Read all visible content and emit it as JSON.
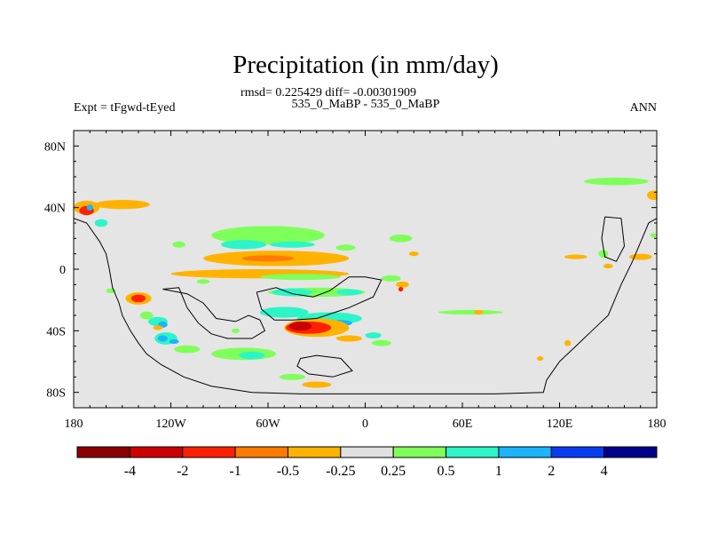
{
  "chart_data": {
    "type": "heatmap",
    "title": "Precipitation (in mm/day)",
    "stats_line": "rmsd= 0.225429 diff= -0.00301909",
    "case_line": "535_0_MaBP - 535_0_MaBP",
    "left_label": "Expt = tFgwd-tEyed",
    "right_label": "ANN",
    "xlim": [
      -180,
      180
    ],
    "ylim": [
      -90,
      90
    ],
    "x_ticks": [
      {
        "value": -180,
        "label": "180"
      },
      {
        "value": -120,
        "label": "120W"
      },
      {
        "value": -60,
        "label": "60W"
      },
      {
        "value": 0,
        "label": "0"
      },
      {
        "value": 60,
        "label": "60E"
      },
      {
        "value": 120,
        "label": "120E"
      },
      {
        "value": 180,
        "label": "180"
      }
    ],
    "y_ticks": [
      {
        "value": 80,
        "label": "80N"
      },
      {
        "value": 40,
        "label": "40N"
      },
      {
        "value": 0,
        "label": "0"
      },
      {
        "value": -40,
        "label": "40S"
      },
      {
        "value": -80,
        "label": "80S"
      }
    ],
    "colorbar": {
      "colors": [
        "#8b0000",
        "#cc0000",
        "#ff2000",
        "#ff7a00",
        "#ffb300",
        "#e0e0e0",
        "#7fff5a",
        "#2cf5c8",
        "#1ab4ff",
        "#0a3cf0",
        "#00008b"
      ],
      "labels": [
        "-4",
        "-2",
        "-1",
        "-0.5",
        "-0.25",
        "0.25",
        "0.5",
        "1",
        "2",
        "4"
      ]
    },
    "background_color": "#e5e5e5",
    "coastline": [
      [
        [
          -180,
          33
        ],
        [
          -172,
          30
        ],
        [
          -168,
          24
        ],
        [
          -164,
          18
        ],
        [
          -160,
          10
        ],
        [
          -158,
          0
        ],
        [
          -156,
          -12
        ],
        [
          -152,
          -22
        ],
        [
          -150,
          -30
        ],
        [
          -145,
          -40
        ],
        [
          -140,
          -48
        ],
        [
          -135,
          -55
        ],
        [
          -126,
          -62
        ],
        [
          -112,
          -70
        ],
        [
          -95,
          -76
        ],
        [
          -70,
          -80
        ],
        [
          -40,
          -81
        ],
        [
          0,
          -81
        ],
        [
          40,
          -81
        ],
        [
          80,
          -81
        ],
        [
          110,
          -80
        ],
        [
          112,
          -72
        ],
        [
          120,
          -60
        ],
        [
          130,
          -50
        ],
        [
          140,
          -40
        ],
        [
          150,
          -30
        ],
        [
          158,
          -10
        ],
        [
          165,
          5
        ],
        [
          175,
          30
        ],
        [
          180,
          33
        ]
      ],
      [
        [
          -125,
          -13
        ],
        [
          -115,
          -12
        ],
        [
          -110,
          -25
        ],
        [
          -103,
          -35
        ],
        [
          -95,
          -42
        ],
        [
          -85,
          -45
        ],
        [
          -70,
          -45
        ],
        [
          -62,
          -40
        ],
        [
          -65,
          -33
        ],
        [
          -72,
          -30
        ],
        [
          -80,
          -34
        ],
        [
          -92,
          -32
        ],
        [
          -100,
          -22
        ],
        [
          -110,
          -16
        ],
        [
          -125,
          -13
        ]
      ],
      [
        [
          -67,
          -15
        ],
        [
          -55,
          -12
        ],
        [
          -45,
          -16
        ],
        [
          -32,
          -18
        ],
        [
          -22,
          -14
        ],
        [
          -10,
          -5
        ],
        [
          0,
          -5
        ],
        [
          10,
          -7
        ],
        [
          5,
          -18
        ],
        [
          -10,
          -25
        ],
        [
          -30,
          -32
        ],
        [
          -45,
          -33
        ],
        [
          -56,
          -33
        ],
        [
          -64,
          -26
        ],
        [
          -67,
          -15
        ]
      ],
      [
        [
          -40,
          -58
        ],
        [
          -30,
          -56
        ],
        [
          -15,
          -58
        ],
        [
          -8,
          -66
        ],
        [
          -20,
          -70
        ],
        [
          -35,
          -68
        ],
        [
          -42,
          -63
        ],
        [
          -40,
          -58
        ]
      ],
      [
        [
          148,
          34
        ],
        [
          158,
          33
        ],
        [
          160,
          15
        ],
        [
          155,
          5
        ],
        [
          148,
          8
        ],
        [
          146,
          20
        ],
        [
          148,
          34
        ]
      ]
    ],
    "anomalies": [
      {
        "lon": -172,
        "lat": 40,
        "w": 16,
        "h": 9,
        "value": -0.35
      },
      {
        "lon": -172,
        "lat": 38,
        "w": 9,
        "h": 6,
        "value": -1.2
      },
      {
        "lon": -170,
        "lat": 40,
        "w": 4,
        "h": 4,
        "value": 1.5
      },
      {
        "lon": -150,
        "lat": 42,
        "w": 34,
        "h": 6,
        "value": -0.35
      },
      {
        "lon": -163,
        "lat": 30,
        "w": 8,
        "h": 5,
        "value": 0.6
      },
      {
        "lon": -115,
        "lat": 16,
        "w": 8,
        "h": 4,
        "value": 0.35
      },
      {
        "lon": -60,
        "lat": 22,
        "w": 70,
        "h": 12,
        "value": 0.35
      },
      {
        "lon": -75,
        "lat": 16,
        "w": 28,
        "h": 6,
        "value": 0.7
      },
      {
        "lon": -45,
        "lat": 16,
        "w": 28,
        "h": 4,
        "value": 0.7
      },
      {
        "lon": -12,
        "lat": 14,
        "w": 12,
        "h": 4,
        "value": 0.35
      },
      {
        "lon": 22,
        "lat": 20,
        "w": 14,
        "h": 5,
        "value": 0.35
      },
      {
        "lon": -55,
        "lat": 7,
        "w": 90,
        "h": 10,
        "value": -0.35
      },
      {
        "lon": -60,
        "lat": 7,
        "w": 32,
        "h": 4,
        "value": -0.7
      },
      {
        "lon": -65,
        "lat": -3,
        "w": 110,
        "h": 6,
        "value": -0.35
      },
      {
        "lon": -40,
        "lat": -5,
        "w": 50,
        "h": 4,
        "value": 0.35
      },
      {
        "lon": 16,
        "lat": -6,
        "w": 12,
        "h": 4,
        "value": 0.35
      },
      {
        "lon": -30,
        "lat": -15,
        "w": 60,
        "h": 6,
        "value": 0.35
      },
      {
        "lon": -45,
        "lat": -15,
        "w": 25,
        "h": 5,
        "value": 0.7
      },
      {
        "lon": -10,
        "lat": -15,
        "w": 16,
        "h": 4,
        "value": 0.7
      },
      {
        "lon": -50,
        "lat": -28,
        "w": 30,
        "h": 7,
        "value": 0.6
      },
      {
        "lon": -22,
        "lat": -32,
        "w": 40,
        "h": 8,
        "value": 0.7
      },
      {
        "lon": -15,
        "lat": -35,
        "w": 14,
        "h": 4,
        "value": 1.5
      },
      {
        "lon": -30,
        "lat": -38,
        "w": 40,
        "h": 12,
        "value": -0.35
      },
      {
        "lon": -35,
        "lat": -38,
        "w": 28,
        "h": 8,
        "value": -1.5
      },
      {
        "lon": -40,
        "lat": -37,
        "w": 14,
        "h": 6,
        "value": -3.0
      },
      {
        "lon": -10,
        "lat": -45,
        "w": 16,
        "h": 4,
        "value": -0.35
      },
      {
        "lon": 10,
        "lat": -48,
        "w": 12,
        "h": 4,
        "value": 0.35
      },
      {
        "lon": 5,
        "lat": -43,
        "w": 10,
        "h": 4,
        "value": 0.7
      },
      {
        "lon": 65,
        "lat": -28,
        "w": 40,
        "h": 3,
        "value": 0.35
      },
      {
        "lon": 70,
        "lat": -28,
        "w": 12,
        "h": 2,
        "value": 0.35
      },
      {
        "lon": 23,
        "lat": -10,
        "w": 8,
        "h": 4,
        "value": -0.35
      },
      {
        "lon": 22,
        "lat": -13,
        "w": 3,
        "h": 3,
        "value": -1.2
      },
      {
        "lon": 70,
        "lat": -28,
        "w": 6,
        "h": 3,
        "value": -0.35
      },
      {
        "lon": -140,
        "lat": -19,
        "w": 16,
        "h": 8,
        "value": -0.35
      },
      {
        "lon": -140,
        "lat": -19,
        "w": 9,
        "h": 5,
        "value": -1.5
      },
      {
        "lon": -135,
        "lat": -30,
        "w": 8,
        "h": 5,
        "value": 0.35
      },
      {
        "lon": -128,
        "lat": -34,
        "w": 12,
        "h": 6,
        "value": 0.7
      },
      {
        "lon": -125,
        "lat": -36,
        "w": 6,
        "h": 4,
        "value": 1.5
      },
      {
        "lon": -123,
        "lat": -45,
        "w": 14,
        "h": 8,
        "value": 0.7
      },
      {
        "lon": -125,
        "lat": -45,
        "w": 6,
        "h": 4,
        "value": 1.5
      },
      {
        "lon": -118,
        "lat": -47,
        "w": 6,
        "h": 3,
        "value": 1.5
      },
      {
        "lon": -128,
        "lat": -38,
        "w": 6,
        "h": 3,
        "value": -0.35
      },
      {
        "lon": -110,
        "lat": -52,
        "w": 16,
        "h": 5,
        "value": 0.35
      },
      {
        "lon": -75,
        "lat": -55,
        "w": 40,
        "h": 8,
        "value": 0.35
      },
      {
        "lon": -70,
        "lat": -56,
        "w": 16,
        "h": 5,
        "value": 0.7
      },
      {
        "lon": -45,
        "lat": -70,
        "w": 16,
        "h": 4,
        "value": 0.35
      },
      {
        "lon": -30,
        "lat": -75,
        "w": 18,
        "h": 4,
        "value": -0.35
      },
      {
        "lon": -157,
        "lat": -14,
        "w": 6,
        "h": 3,
        "value": 0.35
      },
      {
        "lon": 170,
        "lat": 8,
        "w": 14,
        "h": 4,
        "value": -0.35
      },
      {
        "lon": 155,
        "lat": 57,
        "w": 40,
        "h": 5,
        "value": 0.35
      },
      {
        "lon": 178,
        "lat": 48,
        "w": 8,
        "h": 6,
        "value": -0.35
      },
      {
        "lon": 130,
        "lat": 8,
        "w": 14,
        "h": 3,
        "value": -0.35
      },
      {
        "lon": 147,
        "lat": 10,
        "w": 6,
        "h": 5,
        "value": 0.35
      },
      {
        "lon": 150,
        "lat": 2,
        "w": 6,
        "h": 3,
        "value": -0.35
      },
      {
        "lon": 125,
        "lat": -48,
        "w": 4,
        "h": 4,
        "value": -0.35
      },
      {
        "lon": 108,
        "lat": -58,
        "w": 4,
        "h": 3,
        "value": -0.35
      },
      {
        "lon": 178,
        "lat": 22,
        "w": 4,
        "h": 3,
        "value": 0.35
      },
      {
        "lon": -80,
        "lat": -40,
        "w": 5,
        "h": 3,
        "value": 0.35
      },
      {
        "lon": 30,
        "lat": 10,
        "w": 6,
        "h": 3,
        "value": -0.35
      },
      {
        "lon": -100,
        "lat": -8,
        "w": 8,
        "h": 3,
        "value": 0.35
      }
    ]
  }
}
